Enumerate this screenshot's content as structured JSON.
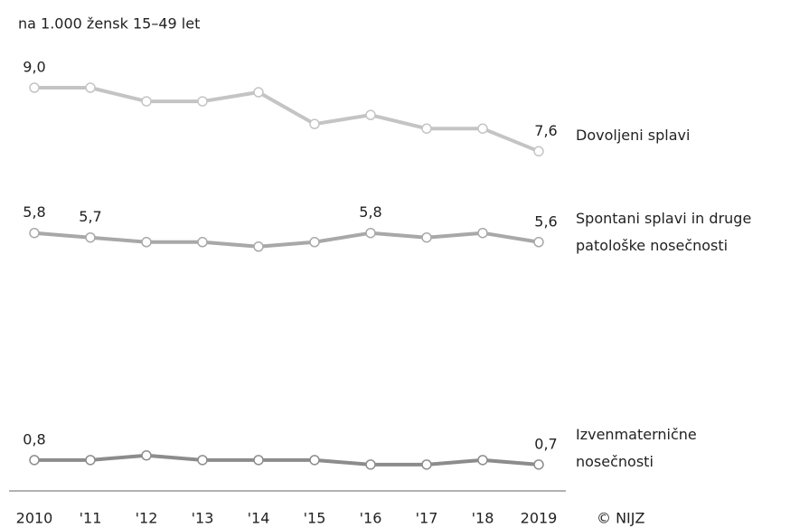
{
  "chart_data": {
    "type": "line",
    "subtitle": "na 1.000 žensk 15–49 let",
    "source": "© NIJZ",
    "categories": [
      "2010",
      "'11",
      "'12",
      "'13",
      "'14",
      "'15",
      "'16",
      "'17",
      "'18",
      "2019"
    ],
    "ylim": [
      0,
      9
    ],
    "series": [
      {
        "name": "Dovoljeni splavi",
        "color": "#c4c4c4",
        "values": [
          9.0,
          9.0,
          8.7,
          8.7,
          8.9,
          8.2,
          8.4,
          8.1,
          8.1,
          7.6
        ],
        "value_labels": [
          "9,0",
          null,
          null,
          null,
          null,
          null,
          null,
          null,
          null,
          "7,6"
        ]
      },
      {
        "name": "Spontani splavi in druge patološke nosečnosti",
        "color": "#a8a8a8",
        "values": [
          5.8,
          5.7,
          5.6,
          5.6,
          5.5,
          5.6,
          5.8,
          5.7,
          5.8,
          5.6
        ],
        "value_labels": [
          "5,8",
          "5,7",
          null,
          null,
          null,
          null,
          "5,8",
          null,
          null,
          "5,6"
        ]
      },
      {
        "name": "Izvenmaternične nosečnosti",
        "color": "#8c8c8c",
        "values": [
          0.8,
          0.8,
          0.9,
          0.8,
          0.8,
          0.8,
          0.7,
          0.7,
          0.8,
          0.7
        ],
        "value_labels": [
          "0,8",
          null,
          null,
          null,
          null,
          null,
          null,
          null,
          null,
          "0,7"
        ]
      }
    ]
  }
}
